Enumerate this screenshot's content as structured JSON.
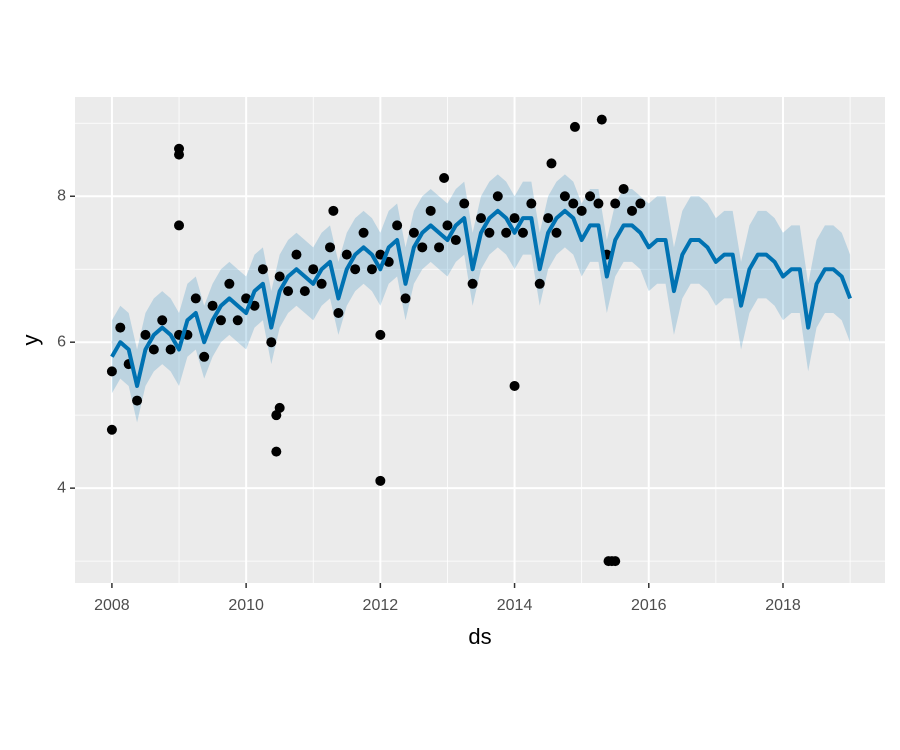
{
  "chart_data": {
    "type": "forecast",
    "xlabel": "ds",
    "ylabel": "y",
    "xlim": [
      2007.45,
      2019.52
    ],
    "ylim": [
      2.7,
      9.36
    ],
    "xticks": [
      2008,
      2010,
      2012,
      2014,
      2016,
      2018
    ],
    "yticks": [
      4,
      6,
      8
    ],
    "xminor": [
      2009,
      2011,
      2013,
      2015,
      2017,
      2019
    ],
    "yminor": [
      3,
      5,
      7,
      9
    ],
    "grid": true,
    "observed": {
      "color": "#000000",
      "x": [
        2008,
        2008.125,
        2008.25,
        2008.375,
        2008.5,
        2008.625,
        2008.75,
        2008.875,
        2009,
        2009.125,
        2009.25,
        2009.375,
        2009.5,
        2009.625,
        2009.75,
        2009.875,
        2010,
        2010.125,
        2010.25,
        2010.375,
        2010.5,
        2010.625,
        2010.75,
        2010.875,
        2011,
        2011.125,
        2011.25,
        2011.375,
        2011.5,
        2011.625,
        2011.75,
        2011.875,
        2012,
        2012.125,
        2012.25,
        2012.375,
        2012.5,
        2012.625,
        2012.75,
        2012.875,
        2013,
        2013.125,
        2013.25,
        2013.375,
        2013.5,
        2013.625,
        2013.75,
        2013.875,
        2014,
        2014.125,
        2014.25,
        2014.375,
        2014.5,
        2014.625,
        2014.75,
        2014.875,
        2015,
        2015.125,
        2015.25,
        2015.375,
        2015.5,
        2015.625,
        2015.75,
        2015.875,
        2008,
        2009,
        2009,
        2009,
        2010.45,
        2010.45,
        2010.5,
        2011.3,
        2012,
        2012,
        2012.95,
        2014,
        2014.55,
        2014.9,
        2015.3,
        2015.4,
        2015.45,
        2015.5
      ],
      "values": [
        5.6,
        6.2,
        5.7,
        5.2,
        6.1,
        5.9,
        6.3,
        5.9,
        6.1,
        6.1,
        6.6,
        5.8,
        6.5,
        6.3,
        6.8,
        6.3,
        6.6,
        6.5,
        7.0,
        6.0,
        6.9,
        6.7,
        7.2,
        6.7,
        7.0,
        6.8,
        7.3,
        6.4,
        7.2,
        7.0,
        7.5,
        7.0,
        7.2,
        7.1,
        7.6,
        6.6,
        7.5,
        7.3,
        7.8,
        7.3,
        7.6,
        7.4,
        7.9,
        6.8,
        7.7,
        7.5,
        8.0,
        7.5,
        7.7,
        7.5,
        7.9,
        6.8,
        7.7,
        7.5,
        8.0,
        7.9,
        7.8,
        8.0,
        7.9,
        7.2,
        7.9,
        8.1,
        7.8,
        7.9,
        4.8,
        8.65,
        8.57,
        7.6,
        4.5,
        5.0,
        5.1,
        7.8,
        4.1,
        6.1,
        8.25,
        5.4,
        8.45,
        8.95,
        9.05,
        3.0,
        3.0,
        3.0
      ]
    },
    "forecast": {
      "color": "#0072B2",
      "x": [
        2008,
        2008.125,
        2008.25,
        2008.375,
        2008.5,
        2008.625,
        2008.75,
        2008.875,
        2009,
        2009.125,
        2009.25,
        2009.375,
        2009.5,
        2009.625,
        2009.75,
        2009.875,
        2010,
        2010.125,
        2010.25,
        2010.375,
        2010.5,
        2010.625,
        2010.75,
        2010.875,
        2011,
        2011.125,
        2011.25,
        2011.375,
        2011.5,
        2011.625,
        2011.75,
        2011.875,
        2012,
        2012.125,
        2012.25,
        2012.375,
        2012.5,
        2012.625,
        2012.75,
        2012.875,
        2013,
        2013.125,
        2013.25,
        2013.375,
        2013.5,
        2013.625,
        2013.75,
        2013.875,
        2014,
        2014.125,
        2014.25,
        2014.375,
        2014.5,
        2014.625,
        2014.75,
        2014.875,
        2015,
        2015.125,
        2015.25,
        2015.375,
        2015.5,
        2015.625,
        2015.75,
        2015.875,
        2016,
        2016.125,
        2016.25,
        2016.375,
        2016.5,
        2016.625,
        2016.75,
        2016.875,
        2017,
        2017.125,
        2017.25,
        2017.375,
        2017.5,
        2017.625,
        2017.75,
        2017.875,
        2018,
        2018.125,
        2018.25,
        2018.375,
        2018.5,
        2018.625,
        2018.75,
        2018.875,
        2019
      ],
      "values": [
        5.8,
        6.0,
        5.9,
        5.4,
        5.9,
        6.1,
        6.2,
        6.1,
        5.9,
        6.3,
        6.4,
        6.0,
        6.3,
        6.5,
        6.6,
        6.5,
        6.4,
        6.7,
        6.8,
        6.2,
        6.7,
        6.9,
        7.0,
        6.9,
        6.8,
        7.0,
        7.1,
        6.6,
        7.0,
        7.2,
        7.3,
        7.2,
        7.0,
        7.3,
        7.4,
        6.8,
        7.3,
        7.5,
        7.6,
        7.5,
        7.4,
        7.6,
        7.7,
        7.0,
        7.5,
        7.7,
        7.8,
        7.7,
        7.5,
        7.7,
        7.7,
        7.0,
        7.5,
        7.7,
        7.8,
        7.7,
        7.4,
        7.6,
        7.6,
        6.9,
        7.4,
        7.6,
        7.6,
        7.5,
        7.3,
        7.4,
        7.4,
        6.7,
        7.2,
        7.4,
        7.4,
        7.3,
        7.1,
        7.2,
        7.2,
        6.5,
        7.0,
        7.2,
        7.2,
        7.1,
        6.9,
        7.0,
        7.0,
        6.2,
        6.8,
        7.0,
        7.0,
        6.9,
        6.6
      ],
      "lower": [
        5.3,
        5.5,
        5.4,
        4.9,
        5.4,
        5.6,
        5.7,
        5.6,
        5.4,
        5.8,
        5.9,
        5.5,
        5.8,
        6.0,
        6.1,
        6.0,
        5.9,
        6.2,
        6.3,
        5.7,
        6.2,
        6.4,
        6.5,
        6.4,
        6.3,
        6.5,
        6.6,
        6.1,
        6.5,
        6.7,
        6.8,
        6.7,
        6.5,
        6.8,
        6.9,
        6.3,
        6.8,
        7.0,
        7.1,
        7.0,
        6.9,
        7.1,
        7.2,
        6.5,
        7.0,
        7.2,
        7.3,
        7.2,
        7.0,
        7.2,
        7.2,
        6.5,
        7.0,
        7.2,
        7.3,
        7.2,
        6.9,
        7.1,
        7.1,
        6.4,
        6.9,
        7.1,
        7.1,
        7.0,
        6.7,
        6.8,
        6.8,
        6.1,
        6.6,
        6.8,
        6.8,
        6.7,
        6.5,
        6.6,
        6.6,
        5.9,
        6.4,
        6.6,
        6.6,
        6.5,
        6.3,
        6.4,
        6.4,
        5.6,
        6.2,
        6.4,
        6.4,
        6.3,
        6.0
      ],
      "upper": [
        6.3,
        6.5,
        6.4,
        5.9,
        6.4,
        6.6,
        6.7,
        6.6,
        6.4,
        6.8,
        6.9,
        6.5,
        6.8,
        7.0,
        7.1,
        7.0,
        6.9,
        7.2,
        7.3,
        6.7,
        7.2,
        7.4,
        7.5,
        7.4,
        7.3,
        7.5,
        7.6,
        7.1,
        7.5,
        7.7,
        7.8,
        7.7,
        7.5,
        7.8,
        7.9,
        7.3,
        7.8,
        8.0,
        8.1,
        8.0,
        7.9,
        8.1,
        8.2,
        7.5,
        8.0,
        8.2,
        8.3,
        8.2,
        8.0,
        8.2,
        8.2,
        7.5,
        8.0,
        8.2,
        8.3,
        8.2,
        7.9,
        8.1,
        8.1,
        7.4,
        7.9,
        8.1,
        8.1,
        8.0,
        7.9,
        8.0,
        8.0,
        7.3,
        7.8,
        8.0,
        8.0,
        7.9,
        7.7,
        7.8,
        7.8,
        7.1,
        7.6,
        7.8,
        7.8,
        7.7,
        7.5,
        7.6,
        7.6,
        6.8,
        7.4,
        7.6,
        7.6,
        7.5,
        7.2
      ]
    }
  }
}
